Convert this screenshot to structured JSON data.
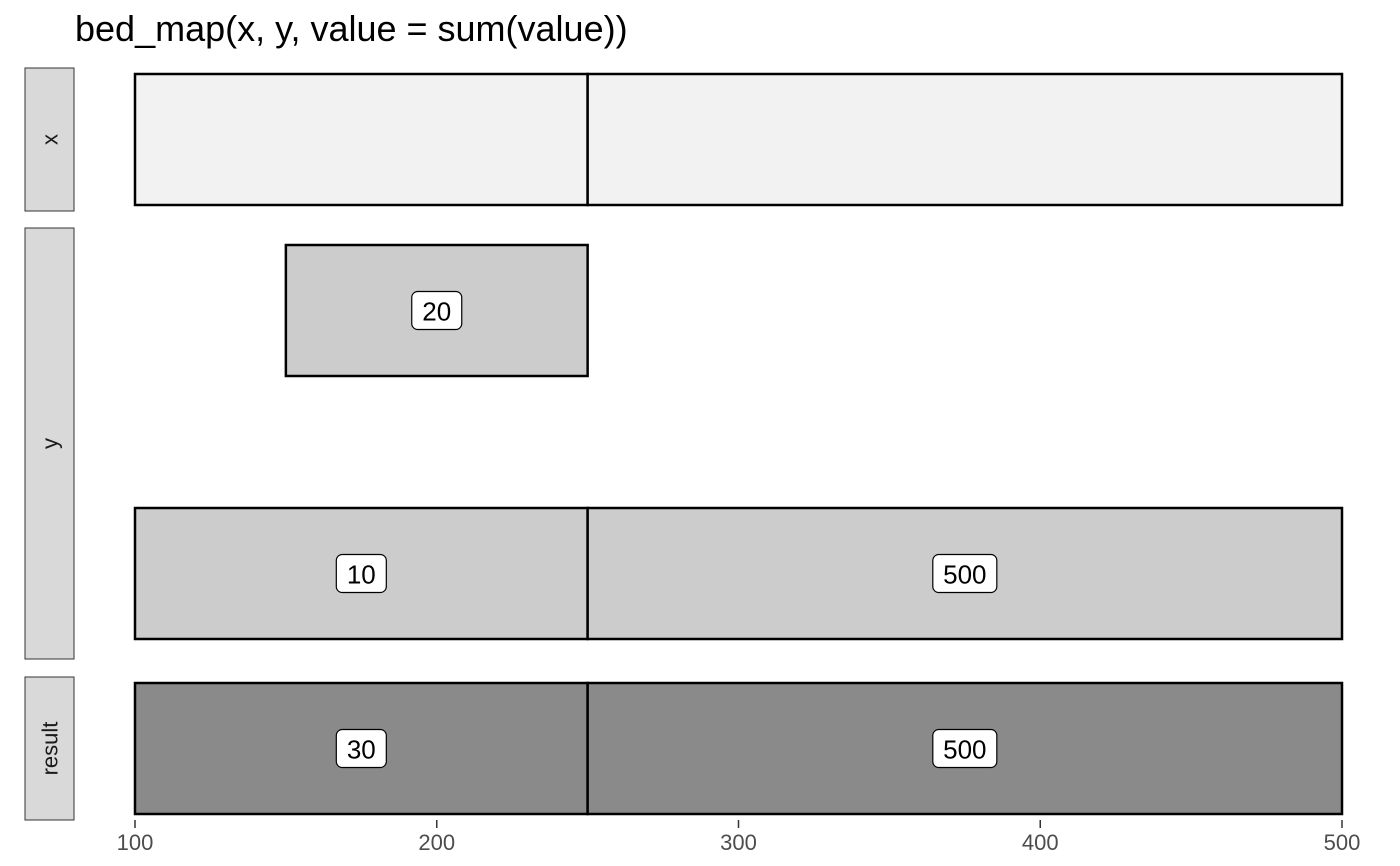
{
  "chart_data": {
    "type": "bar",
    "title": "bed_map(x, y, value = sum(value))",
    "xlabel": "",
    "ylabel": "",
    "xlim": [
      100,
      500
    ],
    "x_ticks": [
      100,
      200,
      300,
      400,
      500
    ],
    "grid": false,
    "legend": "none",
    "panels": [
      {
        "name": "x",
        "fill": "#f2f2f2",
        "intervals": [
          {
            "start": 100,
            "end": 250,
            "label": ""
          },
          {
            "start": 250,
            "end": 500,
            "label": ""
          }
        ]
      },
      {
        "name": "y",
        "fill": "#cccccc",
        "intervals": [
          {
            "start": 150,
            "end": 250,
            "label": "20"
          },
          {
            "start": 100,
            "end": 250,
            "label": "10"
          },
          {
            "start": 250,
            "end": 500,
            "label": "500"
          }
        ]
      },
      {
        "name": "result",
        "fill": "#8a8a8a",
        "intervals": [
          {
            "start": 100,
            "end": 250,
            "label": "30"
          },
          {
            "start": 250,
            "end": 500,
            "label": "500"
          }
        ]
      }
    ]
  }
}
